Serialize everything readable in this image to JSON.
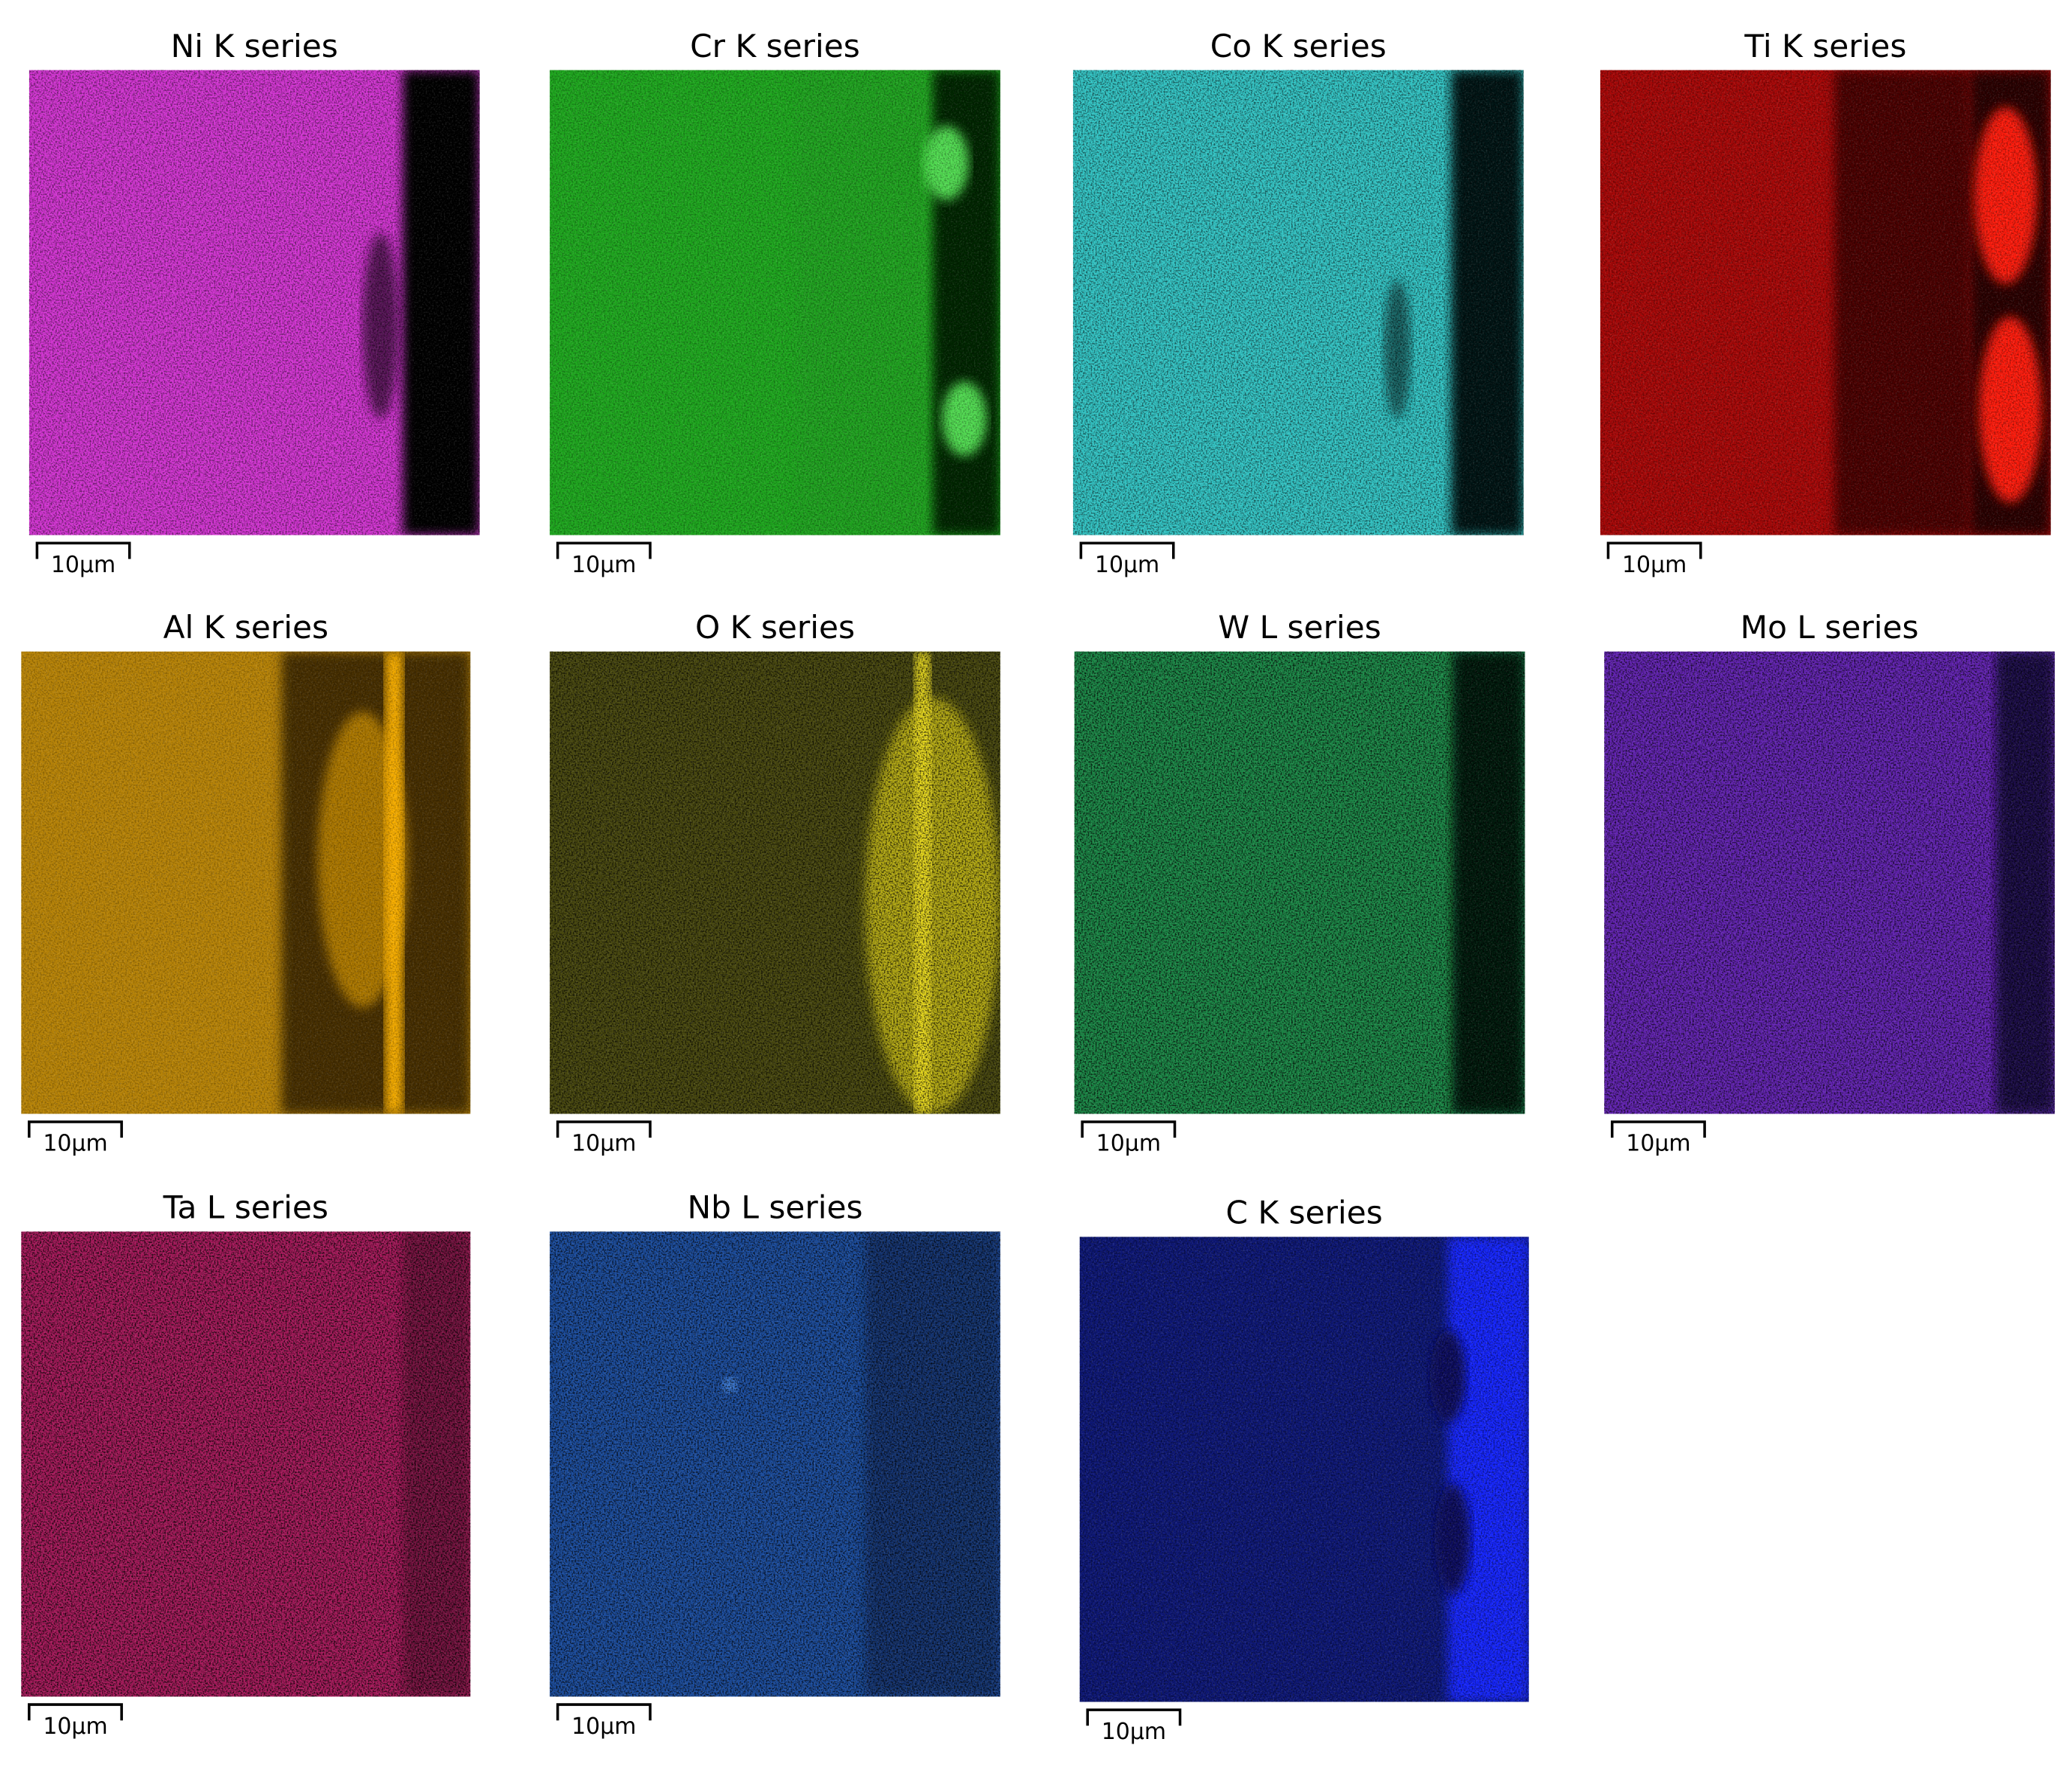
{
  "panels": [
    {
      "title": "Ni K series",
      "scale": "10µm"
    },
    {
      "title": "Cr K series",
      "scale": "10µm"
    },
    {
      "title": "Co K series",
      "scale": "10µm"
    },
    {
      "title": "Ti K series",
      "scale": "10µm"
    },
    {
      "title": "Al K series",
      "scale": "10µm"
    },
    {
      "title": "O K series",
      "scale": "10µm"
    },
    {
      "title": "W L series",
      "scale": "10µm"
    },
    {
      "title": "Mo L series",
      "scale": "10µm"
    },
    {
      "title": "Ta L series",
      "scale": "10µm"
    },
    {
      "title": "Nb L series",
      "scale": "10µm"
    },
    {
      "title": "C K series",
      "scale": "10µm"
    }
  ]
}
